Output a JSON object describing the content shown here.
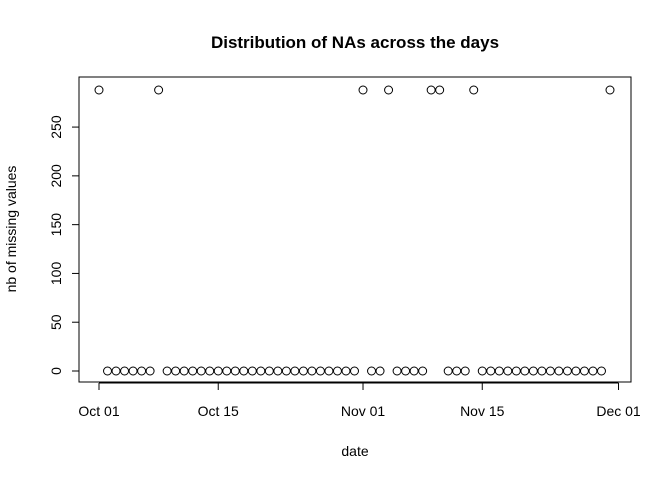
{
  "chart_data": {
    "type": "scatter",
    "title": "Distribution of NAs across the days",
    "xlabel": "date",
    "ylabel": "nb of missing values",
    "x_start": "2012-10-01",
    "xlim": [
      "2012-10-01",
      "2012-11-30"
    ],
    "ylim": [
      0,
      288
    ],
    "x_ticks": [
      {
        "date": "2012-10-01",
        "label": "Oct 01"
      },
      {
        "date": "2012-10-15",
        "label": "Oct 15"
      },
      {
        "date": "2012-11-01",
        "label": "Nov 01"
      },
      {
        "date": "2012-11-15",
        "label": "Nov 15"
      },
      {
        "date": "2012-12-01",
        "label": "Dec 01"
      }
    ],
    "y_ticks": [
      0,
      50,
      100,
      150,
      200,
      250
    ],
    "y_tick_labels": [
      "0",
      "50",
      "100",
      "150",
      "200",
      "250"
    ],
    "grid": false,
    "legend": "none",
    "values": [
      288,
      0,
      0,
      0,
      0,
      0,
      0,
      288,
      0,
      0,
      0,
      0,
      0,
      0,
      0,
      0,
      0,
      0,
      0,
      0,
      0,
      0,
      0,
      0,
      0,
      0,
      0,
      0,
      0,
      0,
      0,
      288,
      0,
      0,
      288,
      0,
      0,
      0,
      0,
      288,
      288,
      0,
      0,
      0,
      288,
      0,
      0,
      0,
      0,
      0,
      0,
      0,
      0,
      0,
      0,
      0,
      0,
      0,
      0,
      0,
      288
    ]
  }
}
